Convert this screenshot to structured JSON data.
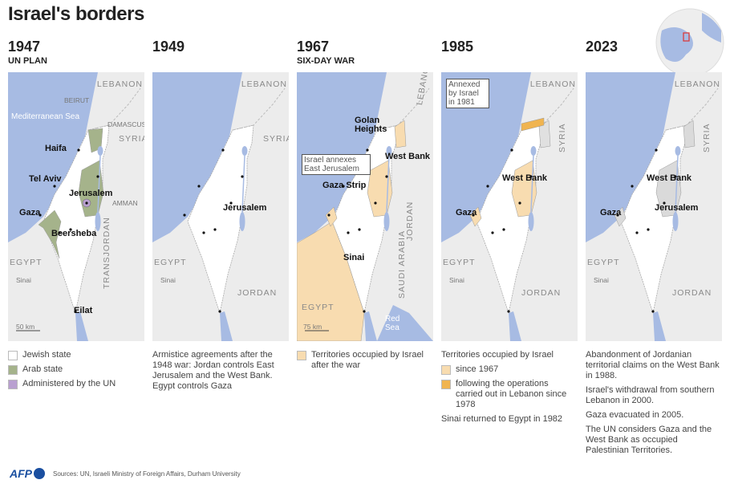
{
  "title": "Israel's borders",
  "panels": [
    {
      "year": "1947",
      "subtitle": "UN PLAN",
      "map_labels": [
        "LEBANON",
        "BEIRUT",
        "Mediterranean Sea",
        "DAMASCUS",
        "SYRIA",
        "Haifa",
        "Tel Aviv",
        "Jerusalem",
        "AMMAN",
        "Gaza",
        "Beersheba",
        "EGYPT",
        "Sinai",
        "TRANSJORDAN",
        "Eilat",
        "50 km"
      ],
      "legend": [
        {
          "label": "Jewish state",
          "color": "#ffffff"
        },
        {
          "label": "Arab state",
          "color": "#a5b38b"
        },
        {
          "label": "Administered by the UN",
          "color": "#b9a0d0"
        }
      ]
    },
    {
      "year": "1949",
      "map_labels": [
        "LEBANON",
        "SYRIA",
        "Jerusalem",
        "EGYPT",
        "Sinai",
        "JORDAN"
      ],
      "notes": [
        "Armistice agreements after the 1948 war: Jordan controls East Jerusalem and the West Bank. Egypt controls Gaza"
      ]
    },
    {
      "year": "1967",
      "subtitle": "SIX-DAY WAR",
      "map_labels": [
        "LEBANON",
        "Golan Heights",
        "West Bank",
        "Israel annexes East Jerusalem",
        "Gaza Strip",
        "Sinai",
        "JORDAN",
        "SAUDI ARABIA",
        "EGYPT",
        "Red Sea",
        "75 km"
      ],
      "legend": [
        {
          "label": "Territories occupied by Israel after the war",
          "color": "#f8dcb0"
        }
      ]
    },
    {
      "year": "1985",
      "map_labels": [
        "Annexed by Israel in 1981",
        "LEBANON",
        "SYRIA",
        "West Bank",
        "Gaza",
        "EGYPT",
        "Sinai",
        "JORDAN"
      ],
      "heading": "Territories occupied by Israel",
      "legend": [
        {
          "label": "since 1967",
          "color": "#f8dcb0"
        },
        {
          "label": "following the operations carried out in Lebanon since 1978",
          "color": "#f0b450"
        }
      ],
      "notes": [
        "Sinai returned to Egypt in 1982"
      ]
    },
    {
      "year": "2023",
      "map_labels": [
        "LEBANON",
        "SYRIA",
        "West Bank",
        "Jerusalem",
        "Gaza",
        "EGYPT",
        "Sinai",
        "JORDAN"
      ],
      "notes": [
        "Abandonment of Jordanian territorial claims on the West Bank in 1988.",
        "Israel's withdrawal from southern Lebanon in 2000.",
        "Gaza evacuated in 2005.",
        "The UN considers Gaza and the West Bank as occupied Palestinian Territories."
      ]
    }
  ],
  "logo": "AFP",
  "source": "Sources: UN, Israeli Ministry of Foreign Affairs, Durham University"
}
